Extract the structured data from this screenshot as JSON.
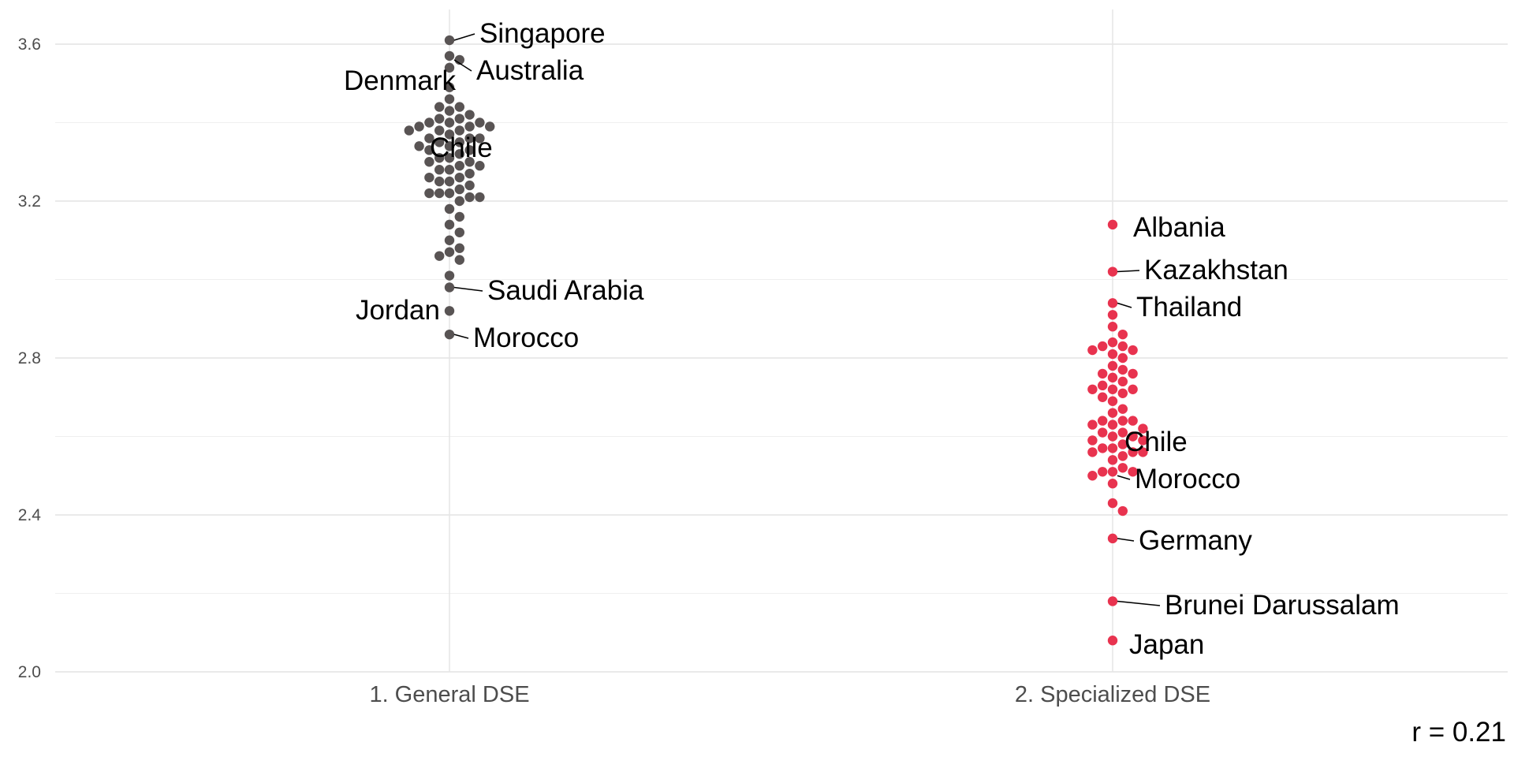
{
  "chart_data": {
    "type": "scatter",
    "subtype": "beeswarm",
    "title": "",
    "xlabel": "",
    "ylabel": "",
    "categories": [
      "1. General DSE",
      "2. Specialized DSE"
    ],
    "ylim": [
      2.0,
      3.68
    ],
    "yticks": [
      2.0,
      2.4,
      2.8,
      3.2,
      3.6
    ],
    "grid": true,
    "legend": "none",
    "annotation": "r = 0.21",
    "colors": {
      "1. General DSE": "#595454",
      "2. Specialized DSE": "#e8334f"
    },
    "series": [
      {
        "name": "1. General DSE",
        "values": [
          3.61,
          3.57,
          3.56,
          3.54,
          3.49,
          3.46,
          3.44,
          3.44,
          3.43,
          3.42,
          3.41,
          3.41,
          3.4,
          3.4,
          3.4,
          3.39,
          3.39,
          3.39,
          3.38,
          3.38,
          3.38,
          3.37,
          3.36,
          3.36,
          3.36,
          3.35,
          3.35,
          3.34,
          3.34,
          3.33,
          3.33,
          3.32,
          3.31,
          3.31,
          3.3,
          3.3,
          3.29,
          3.29,
          3.28,
          3.28,
          3.27,
          3.26,
          3.26,
          3.25,
          3.25,
          3.24,
          3.23,
          3.22,
          3.22,
          3.22,
          3.21,
          3.21,
          3.2,
          3.18,
          3.16,
          3.14,
          3.12,
          3.1,
          3.08,
          3.07,
          3.06,
          3.05,
          3.01,
          2.98,
          2.92,
          2.86
        ],
        "labels": [
          {
            "text": "Singapore",
            "value": 3.61
          },
          {
            "text": "Australia",
            "value": 3.56
          },
          {
            "text": "Denmark",
            "value": 3.49
          },
          {
            "text": "Chile",
            "value": 3.33
          },
          {
            "text": "Saudi Arabia",
            "value": 2.98
          },
          {
            "text": "Jordan",
            "value": 2.92
          },
          {
            "text": "Morocco",
            "value": 2.86
          }
        ]
      },
      {
        "name": "2. Specialized DSE",
        "values": [
          3.14,
          3.02,
          2.94,
          2.91,
          2.88,
          2.86,
          2.84,
          2.83,
          2.83,
          2.82,
          2.82,
          2.81,
          2.8,
          2.78,
          2.77,
          2.76,
          2.76,
          2.75,
          2.74,
          2.73,
          2.72,
          2.72,
          2.72,
          2.71,
          2.7,
          2.69,
          2.67,
          2.66,
          2.64,
          2.64,
          2.64,
          2.63,
          2.63,
          2.62,
          2.61,
          2.61,
          2.6,
          2.6,
          2.59,
          2.59,
          2.58,
          2.57,
          2.57,
          2.56,
          2.56,
          2.56,
          2.55,
          2.54,
          2.52,
          2.51,
          2.51,
          2.51,
          2.5,
          2.48,
          2.43,
          2.41,
          2.34,
          2.18,
          2.08
        ],
        "labels": [
          {
            "text": "Albania",
            "value": 3.14
          },
          {
            "text": "Kazakhstan",
            "value": 3.02
          },
          {
            "text": "Thailand",
            "value": 2.94
          },
          {
            "text": "Chile",
            "value": 2.59
          },
          {
            "text": "Morocco",
            "value": 2.5
          },
          {
            "text": "Germany",
            "value": 2.34
          },
          {
            "text": "Brunei Darussalam",
            "value": 2.18
          },
          {
            "text": "Japan",
            "value": 2.08
          }
        ]
      }
    ]
  }
}
